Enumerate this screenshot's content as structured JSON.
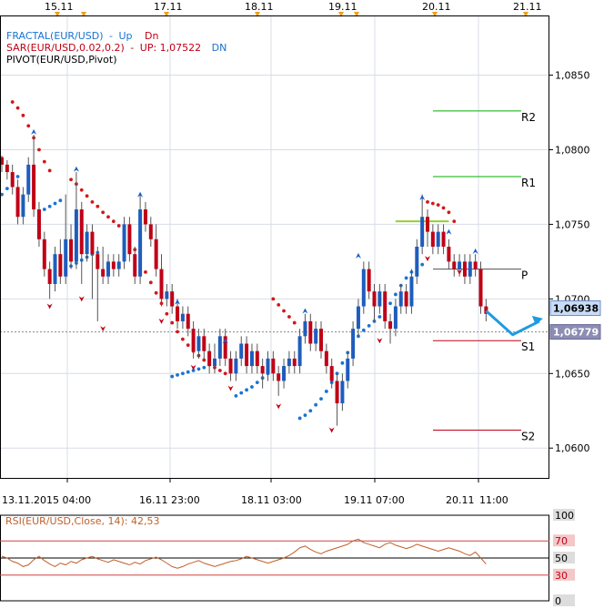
{
  "legend": {
    "fractal": {
      "name": "FRACTAL(EUR/USD)",
      "sep": "-",
      "up": "Up",
      "dn": "Dn"
    },
    "sar": {
      "name": "SAR(EUR/USD,0.02,0.2)",
      "sep": "-",
      "up": "UP: 1,07522",
      "dn": "DN"
    },
    "pivot": {
      "name": "PIVOT(EUR/USD,Pivot)"
    }
  },
  "colors": {
    "background": "#ffffff",
    "frame": "#000000",
    "grid": "#d7dde6",
    "bull_body": "#1e5dbd",
    "bear_body": "#c00016",
    "wick": "#555555",
    "sar_up": "#d01818",
    "sar_dn": "#1a73d0",
    "pivot_P": "#505050",
    "resistance": "#00b000",
    "support": "#c00016",
    "fractal_up": "#1a5fc8",
    "fractal_dn": "#c00016",
    "forecast_arrow": "#1e9be0",
    "highlight_level": "#9acd32",
    "price_tag_bg": "#c9dcf5",
    "price_tag_bg2": "#8d8db4",
    "rsi_line": "#c0602a",
    "rsi_levels": "#d24040"
  },
  "top_axis_dates": [
    "15.11",
    "17.11",
    "18.11",
    "19.11",
    "20.11",
    "21.11"
  ],
  "price_tags": {
    "current": "1,06938",
    "dashed": "1,06779"
  },
  "chart_data": [
    {
      "type": "candlestick",
      "instrument": "EUR/USD",
      "ylim": [
        1.058,
        1.089
      ],
      "y_ticks": [
        {
          "value": 1.06,
          "label": "1,0600"
        },
        {
          "value": 1.065,
          "label": "1,0650"
        },
        {
          "value": 1.07,
          "label": "1,0700"
        },
        {
          "value": 1.075,
          "label": "1,0750"
        },
        {
          "value": 1.08,
          "label": "1,0800"
        },
        {
          "value": 1.085,
          "label": "1,0850"
        }
      ],
      "x_tick_labels": [
        "13.11.2015 04:00",
        "16.11 23:00",
        "18.11 03:00",
        "19.11 07:00",
        "20.11",
        "11:00"
      ],
      "candles": [
        [
          1.0795,
          1.079,
          1.0796,
          1.0785
        ],
        [
          1.079,
          1.0785,
          1.0793,
          1.078
        ],
        [
          1.0785,
          1.0775,
          1.079,
          1.077
        ],
        [
          1.0775,
          1.0755,
          1.078,
          1.075
        ],
        [
          1.0755,
          1.077,
          1.0775,
          1.075
        ],
        [
          1.077,
          1.079,
          1.0795,
          1.0765
        ],
        [
          1.079,
          1.076,
          1.081,
          1.0755
        ],
        [
          1.076,
          1.074,
          1.0765,
          1.0735
        ],
        [
          1.074,
          1.072,
          1.0745,
          1.0715
        ],
        [
          1.072,
          1.071,
          1.0725,
          1.07
        ],
        [
          1.071,
          1.073,
          1.0735,
          1.0705
        ],
        [
          1.073,
          1.0715,
          1.074,
          1.071
        ],
        [
          1.0715,
          1.074,
          1.077,
          1.071
        ],
        [
          1.074,
          1.0725,
          1.075,
          1.072
        ],
        [
          1.0725,
          1.076,
          1.0785,
          1.072
        ],
        [
          1.076,
          1.073,
          1.0765,
          1.071
        ],
        [
          1.073,
          1.0745,
          1.075,
          1.0725
        ],
        [
          1.0745,
          1.073,
          1.075,
          1.07
        ],
        [
          1.073,
          1.072,
          1.0735,
          1.0685
        ],
        [
          1.072,
          1.0715,
          1.0735,
          1.071
        ],
        [
          1.0715,
          1.0725,
          1.073,
          1.071
        ],
        [
          1.0725,
          1.072,
          1.073,
          1.0715
        ],
        [
          1.072,
          1.0725,
          1.073,
          1.0715
        ],
        [
          1.0725,
          1.075,
          1.0755,
          1.072
        ],
        [
          1.075,
          1.073,
          1.0755,
          1.0725
        ],
        [
          1.073,
          1.0715,
          1.0735,
          1.071
        ],
        [
          1.0715,
          1.076,
          1.077,
          1.071
        ],
        [
          1.076,
          1.075,
          1.0765,
          1.0745
        ],
        [
          1.075,
          1.074,
          1.0755,
          1.0735
        ],
        [
          1.074,
          1.072,
          1.075,
          1.0715
        ],
        [
          1.072,
          1.07,
          1.073,
          1.0695
        ],
        [
          1.07,
          1.0705,
          1.071,
          1.0695
        ],
        [
          1.0705,
          1.0695,
          1.071,
          1.069
        ],
        [
          1.0695,
          1.0685,
          1.07,
          1.068
        ],
        [
          1.0685,
          1.069,
          1.0695,
          1.068
        ],
        [
          1.069,
          1.068,
          1.0695,
          1.0675
        ],
        [
          1.068,
          1.0665,
          1.0685,
          1.066
        ],
        [
          1.0665,
          1.0675,
          1.068,
          1.066
        ],
        [
          1.0675,
          1.0665,
          1.068,
          1.066
        ],
        [
          1.0665,
          1.0655,
          1.067,
          1.065
        ],
        [
          1.0655,
          1.066,
          1.067,
          1.065
        ],
        [
          1.066,
          1.0675,
          1.068,
          1.0655
        ],
        [
          1.0675,
          1.066,
          1.068,
          1.0655
        ],
        [
          1.066,
          1.065,
          1.0665,
          1.0645
        ],
        [
          1.065,
          1.066,
          1.0665,
          1.0645
        ],
        [
          1.066,
          1.067,
          1.0675,
          1.0655
        ],
        [
          1.067,
          1.0655,
          1.0675,
          1.065
        ],
        [
          1.0655,
          1.0665,
          1.067,
          1.065
        ],
        [
          1.0665,
          1.0655,
          1.067,
          1.065
        ],
        [
          1.0655,
          1.065,
          1.066,
          1.064
        ],
        [
          1.065,
          1.066,
          1.0665,
          1.0645
        ],
        [
          1.066,
          1.065,
          1.0665,
          1.0645
        ],
        [
          1.065,
          1.0645,
          1.0655,
          1.0635
        ],
        [
          1.0645,
          1.0655,
          1.066,
          1.064
        ],
        [
          1.0655,
          1.066,
          1.0665,
          1.065
        ],
        [
          1.066,
          1.0655,
          1.0665,
          1.065
        ],
        [
          1.0655,
          1.0675,
          1.068,
          1.065
        ],
        [
          1.0675,
          1.0685,
          1.069,
          1.067
        ],
        [
          1.0685,
          1.067,
          1.069,
          1.0665
        ],
        [
          1.067,
          1.068,
          1.0685,
          1.0665
        ],
        [
          1.068,
          1.0665,
          1.0685,
          1.066
        ],
        [
          1.0665,
          1.0655,
          1.067,
          1.065
        ],
        [
          1.0655,
          1.0645,
          1.066,
          1.064
        ],
        [
          1.0645,
          1.063,
          1.065,
          1.0615
        ],
        [
          1.063,
          1.0645,
          1.065,
          1.0625
        ],
        [
          1.0645,
          1.066,
          1.0665,
          1.064
        ],
        [
          1.066,
          1.068,
          1.0685,
          1.0655
        ],
        [
          1.068,
          1.0695,
          1.07,
          1.0675
        ],
        [
          1.0695,
          1.072,
          1.0725,
          1.069
        ],
        [
          1.072,
          1.0705,
          1.0725,
          1.07
        ],
        [
          1.0705,
          1.0695,
          1.071,
          1.0685
        ],
        [
          1.0695,
          1.0705,
          1.071,
          1.069
        ],
        [
          1.0705,
          1.0685,
          1.071,
          1.068
        ],
        [
          1.0685,
          1.068,
          1.069,
          1.067
        ],
        [
          1.068,
          1.0695,
          1.07,
          1.0675
        ],
        [
          1.0695,
          1.0705,
          1.071,
          1.069
        ],
        [
          1.0705,
          1.0695,
          1.071,
          1.069
        ],
        [
          1.0695,
          1.0715,
          1.072,
          1.069
        ],
        [
          1.0715,
          1.0735,
          1.074,
          1.071
        ],
        [
          1.0735,
          1.0755,
          1.077,
          1.073
        ],
        [
          1.0755,
          1.0745,
          1.076,
          1.0735
        ],
        [
          1.0745,
          1.0735,
          1.075,
          1.073
        ],
        [
          1.0735,
          1.0745,
          1.075,
          1.073
        ],
        [
          1.0745,
          1.0735,
          1.075,
          1.073
        ],
        [
          1.0735,
          1.0725,
          1.074,
          1.072
        ],
        [
          1.0725,
          1.072,
          1.073,
          1.0715
        ],
        [
          1.072,
          1.0725,
          1.073,
          1.0715
        ],
        [
          1.0725,
          1.0715,
          1.073,
          1.071
        ],
        [
          1.0715,
          1.0725,
          1.073,
          1.071
        ],
        [
          1.0725,
          1.072,
          1.073,
          1.0715
        ],
        [
          1.072,
          1.0695,
          1.0725,
          1.069
        ],
        [
          1.0695,
          1.069,
          1.07,
          1.0685
        ]
      ],
      "sar_up": [
        [
          2,
          1.0832
        ],
        [
          3,
          1.0828
        ],
        [
          4,
          1.0823
        ],
        [
          5,
          1.0816
        ],
        [
          6,
          1.0808
        ],
        [
          7,
          1.08
        ],
        [
          8,
          1.0792
        ],
        [
          9,
          1.0786
        ],
        [
          13,
          1.078
        ],
        [
          14,
          1.0777
        ],
        [
          15,
          1.0773
        ],
        [
          16,
          1.0769
        ],
        [
          17,
          1.0765
        ],
        [
          18,
          1.0762
        ],
        [
          19,
          1.0758
        ],
        [
          20,
          1.0755
        ],
        [
          21,
          1.0752
        ],
        [
          22,
          1.0749
        ],
        [
          23,
          1.0745
        ],
        [
          24,
          1.0739
        ],
        [
          25,
          1.0733
        ],
        [
          26,
          1.0726
        ],
        [
          27,
          1.0718
        ],
        [
          28,
          1.0711
        ],
        [
          29,
          1.0704
        ],
        [
          30,
          1.0697
        ],
        [
          31,
          1.069
        ],
        [
          32,
          1.0684
        ],
        [
          33,
          1.0678
        ],
        [
          34,
          1.0673
        ],
        [
          35,
          1.0669
        ],
        [
          36,
          1.0665
        ],
        [
          37,
          1.0662
        ],
        [
          38,
          1.0659
        ],
        [
          39,
          1.0656
        ],
        [
          40,
          1.0654
        ],
        [
          41,
          1.0652
        ],
        [
          42,
          1.065
        ],
        [
          51,
          1.07
        ],
        [
          52,
          1.0696
        ],
        [
          53,
          1.0692
        ],
        [
          54,
          1.0688
        ],
        [
          55,
          1.0684
        ],
        [
          80,
          1.0765
        ],
        [
          81,
          1.0764
        ],
        [
          82,
          1.0763
        ],
        [
          83,
          1.0761
        ],
        [
          84,
          1.0758
        ],
        [
          85,
          1.0752
        ]
      ],
      "sar_dn": [
        [
          0,
          1.077
        ],
        [
          1,
          1.0774
        ],
        [
          2,
          1.0778
        ],
        [
          3,
          1.0782
        ],
        [
          8,
          1.076
        ],
        [
          9,
          1.0762
        ],
        [
          10,
          1.0764
        ],
        [
          11,
          1.0766
        ],
        [
          12,
          1.072
        ],
        [
          13,
          1.0722
        ],
        [
          14,
          1.0724
        ],
        [
          15,
          1.0726
        ],
        [
          16,
          1.0728
        ],
        [
          17,
          1.073
        ],
        [
          18,
          1.0731
        ],
        [
          32,
          1.0648
        ],
        [
          33,
          1.0649
        ],
        [
          34,
          1.065
        ],
        [
          35,
          1.0651
        ],
        [
          36,
          1.0652
        ],
        [
          37,
          1.0653
        ],
        [
          38,
          1.0654
        ],
        [
          44,
          1.0635
        ],
        [
          45,
          1.0637
        ],
        [
          46,
          1.0639
        ],
        [
          47,
          1.0641
        ],
        [
          48,
          1.0644
        ],
        [
          49,
          1.0647
        ],
        [
          50,
          1.065
        ],
        [
          56,
          1.062
        ],
        [
          57,
          1.0622
        ],
        [
          58,
          1.0625
        ],
        [
          59,
          1.0629
        ],
        [
          60,
          1.0633
        ],
        [
          61,
          1.0638
        ],
        [
          62,
          1.0644
        ],
        [
          63,
          1.065
        ],
        [
          64,
          1.0657
        ],
        [
          65,
          1.0664
        ],
        [
          66,
          1.067
        ],
        [
          67,
          1.0675
        ],
        [
          68,
          1.0679
        ],
        [
          69,
          1.0682
        ],
        [
          70,
          1.0685
        ],
        [
          71,
          1.0688
        ],
        [
          72,
          1.0692
        ],
        [
          73,
          1.0697
        ],
        [
          74,
          1.0703
        ],
        [
          75,
          1.0709
        ],
        [
          76,
          1.0714
        ],
        [
          77,
          1.0718
        ],
        [
          78,
          1.0721
        ],
        [
          79,
          1.0723
        ]
      ],
      "fractals_up": [
        [
          6,
          1.0812
        ],
        [
          14,
          1.0787
        ],
        [
          26,
          1.077
        ],
        [
          33,
          1.0698
        ],
        [
          42,
          1.0672
        ],
        [
          57,
          1.0692
        ],
        [
          67,
          1.0729
        ],
        [
          79,
          1.0768
        ],
        [
          84,
          1.0745
        ],
        [
          89,
          1.0732
        ]
      ],
      "fractals_dn": [
        [
          9,
          1.0695
        ],
        [
          15,
          1.07
        ],
        [
          19,
          1.068
        ],
        [
          30,
          1.0685
        ],
        [
          36,
          1.0654
        ],
        [
          43,
          1.064
        ],
        [
          52,
          1.0628
        ],
        [
          62,
          1.0612
        ],
        [
          71,
          1.0672
        ],
        [
          80,
          1.0727
        ],
        [
          86,
          1.0718
        ]
      ],
      "forecast_arrow": [
        [
          91,
          1.0692
        ],
        [
          96,
          1.0676
        ],
        [
          101,
          1.0685
        ]
      ],
      "highlight_level": {
        "value": 1.0752,
        "from": 74,
        "to": 84
      },
      "pivot_levels": [
        {
          "name": "R2",
          "label": "R2",
          "value": 1.0826
        },
        {
          "name": "R1",
          "label": "R1",
          "value": 1.0782
        },
        {
          "name": "P",
          "label": "P",
          "value": 1.072
        },
        {
          "name": "S1",
          "label": "S1",
          "value": 1.0672
        },
        {
          "name": "S2",
          "label": "S2",
          "value": 1.0612
        }
      ]
    },
    {
      "type": "line",
      "indicator": "RSI",
      "title": "RSI(EUR/USD,Close, 14): 42,53",
      "ylim": [
        0,
        100
      ],
      "levels": [
        {
          "value": 100,
          "label": "100"
        },
        {
          "value": 70,
          "label": "70"
        },
        {
          "value": 50,
          "label": "50"
        },
        {
          "value": 30,
          "label": "30"
        },
        {
          "value": 0,
          "label": "0"
        }
      ],
      "values": [
        52,
        50,
        46,
        44,
        40,
        42,
        48,
        52,
        47,
        43,
        40,
        44,
        42,
        46,
        44,
        48,
        50,
        52,
        49,
        47,
        45,
        48,
        46,
        44,
        42,
        45,
        43,
        47,
        49,
        51,
        48,
        44,
        40,
        38,
        40,
        43,
        45,
        47,
        44,
        42,
        40,
        42,
        44,
        46,
        47,
        49,
        52,
        50,
        48,
        46,
        44,
        46,
        48,
        50,
        53,
        57,
        62,
        64,
        60,
        57,
        55,
        58,
        60,
        62,
        64,
        66,
        70,
        72,
        68,
        66,
        64,
        62,
        66,
        68,
        65,
        63,
        61,
        63,
        66,
        64,
        62,
        60,
        58,
        60,
        62,
        60,
        58,
        55,
        53,
        57,
        50,
        43
      ]
    }
  ]
}
